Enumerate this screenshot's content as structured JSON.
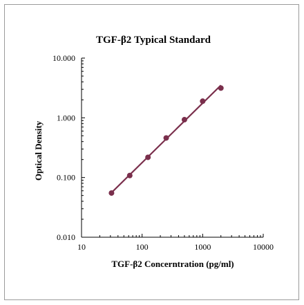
{
  "chart_data": {
    "type": "scatter",
    "title": "TGF-β2 Typical Standard",
    "xlabel": "TGF-β2 Concerntration (pg/ml)",
    "ylabel": "Optical Density",
    "x_scale": "log",
    "y_scale": "log",
    "xlim": [
      10,
      10000
    ],
    "ylim": [
      0.01,
      10
    ],
    "x_ticks": [
      "10",
      "100",
      "1000",
      "10000"
    ],
    "y_ticks": [
      "0.010",
      "0.100",
      "1.000",
      "10.000"
    ],
    "grid": false,
    "legend": "none",
    "colors": {
      "series": "#7a2f4c"
    },
    "series": [
      {
        "x": [
          31.25,
          62.5,
          125,
          250,
          500,
          1000,
          2000
        ],
        "y": [
          0.055,
          0.108,
          0.218,
          0.46,
          0.93,
          1.9,
          3.15
        ],
        "fit_line": true
      }
    ]
  }
}
